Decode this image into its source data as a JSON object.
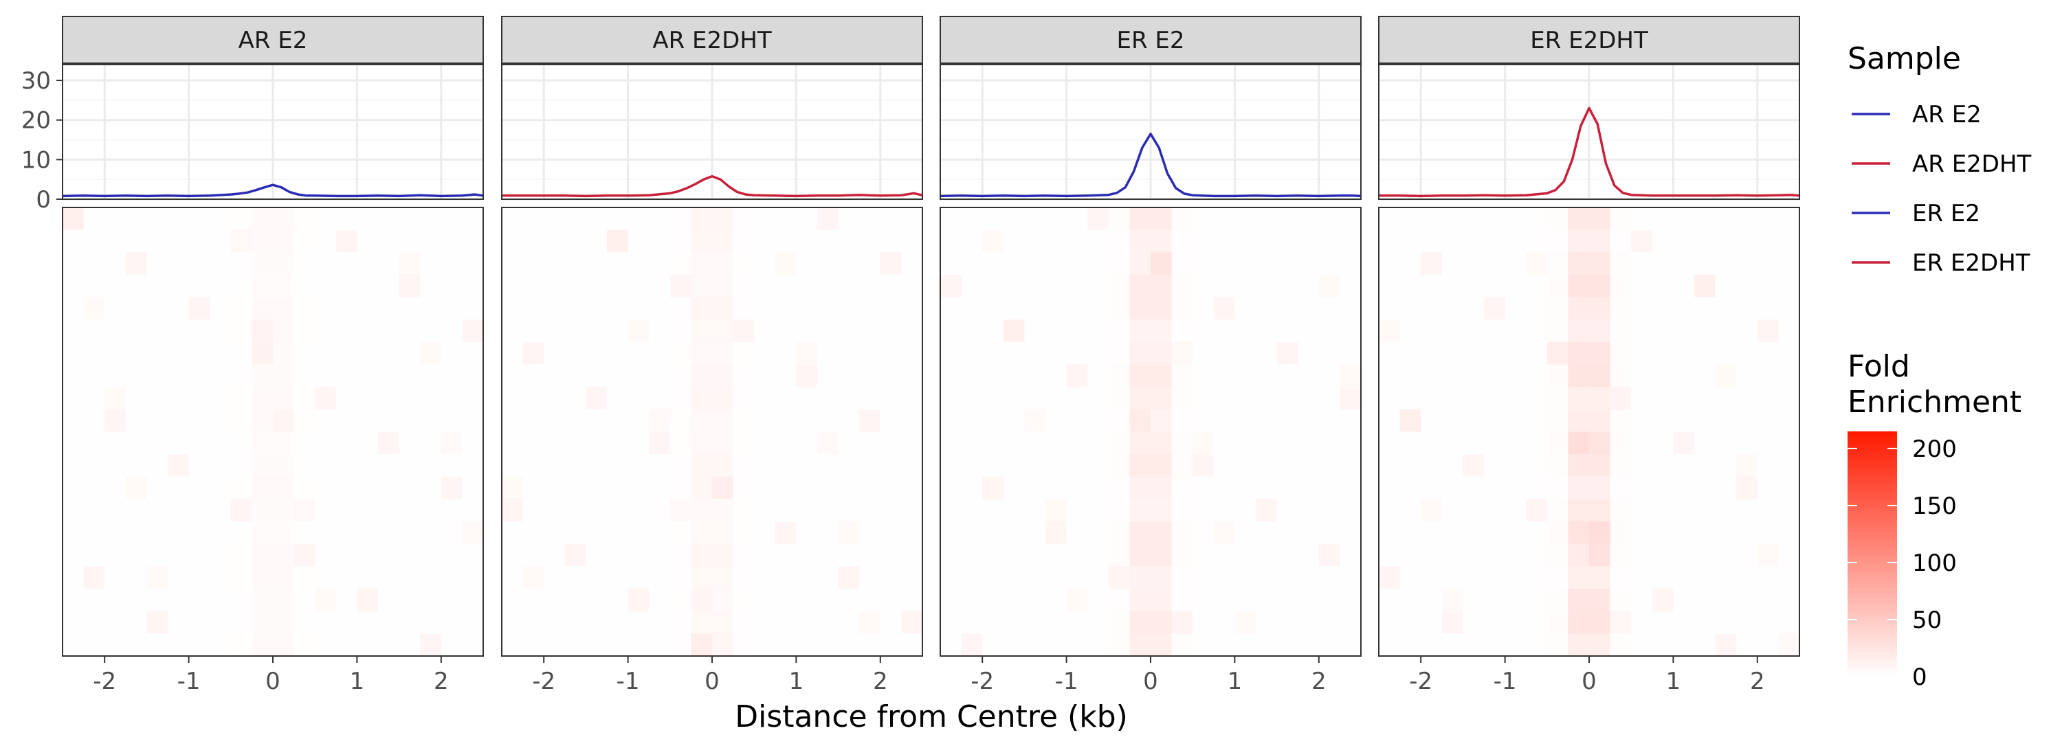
{
  "chart_data": {
    "type": "line",
    "panels": [
      {
        "title": "AR E2",
        "color": "#2b2bb5"
      },
      {
        "title": "AR E2DHT",
        "color": "#c8203a"
      },
      {
        "title": "ER E2",
        "color": "#2b2bb5"
      },
      {
        "title": "ER E2DHT",
        "color": "#c8203a"
      }
    ],
    "profile_x": [
      -2.5,
      -2.25,
      -2.0,
      -1.75,
      -1.5,
      -1.25,
      -1.0,
      -0.75,
      -0.5,
      -0.4,
      -0.3,
      -0.2,
      -0.1,
      0.0,
      0.1,
      0.2,
      0.3,
      0.4,
      0.5,
      0.75,
      1.0,
      1.25,
      1.5,
      1.75,
      2.0,
      2.25,
      2.4,
      2.5
    ],
    "series": [
      {
        "name": "AR E2",
        "values": [
          0.8,
          0.9,
          0.8,
          0.9,
          0.8,
          0.9,
          0.8,
          0.9,
          1.2,
          1.4,
          1.7,
          2.3,
          3.0,
          3.6,
          3.0,
          1.8,
          1.2,
          0.9,
          0.9,
          0.8,
          0.8,
          0.9,
          0.8,
          1.0,
          0.8,
          0.9,
          1.2,
          0.9
        ]
      },
      {
        "name": "AR E2DHT",
        "values": [
          0.9,
          0.9,
          0.9,
          0.9,
          0.8,
          0.9,
          0.9,
          1.0,
          1.5,
          2.0,
          2.8,
          3.8,
          5.0,
          5.8,
          5.0,
          3.2,
          1.8,
          1.2,
          1.0,
          0.9,
          0.8,
          0.9,
          0.9,
          1.1,
          0.9,
          1.0,
          1.5,
          1.0
        ]
      },
      {
        "name": "ER E2",
        "values": [
          0.8,
          0.9,
          0.8,
          0.9,
          0.8,
          0.9,
          0.8,
          0.9,
          1.1,
          1.6,
          3.0,
          7.0,
          13.0,
          16.5,
          13.0,
          6.5,
          2.8,
          1.4,
          1.0,
          0.8,
          0.8,
          0.9,
          0.8,
          0.9,
          0.8,
          0.9,
          0.9,
          0.8
        ]
      },
      {
        "name": "ER E2DHT",
        "values": [
          0.9,
          0.9,
          0.8,
          0.9,
          0.9,
          1.0,
          0.9,
          1.0,
          1.5,
          2.3,
          4.5,
          10.0,
          18.5,
          23.0,
          19.0,
          9.0,
          3.5,
          1.6,
          1.1,
          0.9,
          0.9,
          0.9,
          0.9,
          1.0,
          0.9,
          1.0,
          1.1,
          0.9
        ]
      }
    ],
    "profile_ylim": [
      0,
      34
    ],
    "profile_yticks": [
      0,
      10,
      20,
      30
    ],
    "xlim": [
      -2.5,
      2.5
    ],
    "xticks": [
      -2,
      -1,
      0,
      1,
      2
    ],
    "xlabel": "Distance from Centre (kb)",
    "ylabel": "",
    "legend": {
      "title": "Sample",
      "entries": [
        {
          "label": "AR E2",
          "color": "#2b2bb5"
        },
        {
          "label": "AR E2DHT",
          "color": "#c8203a"
        },
        {
          "label": "ER E2",
          "color": "#2b2bb5"
        },
        {
          "label": "ER E2DHT",
          "color": "#c8203a"
        }
      ],
      "placement": "right"
    },
    "heatmap": {
      "n_rows": 20,
      "n_cols": 20,
      "peak_fold": [
        6,
        10,
        25,
        35
      ],
      "colorbar": {
        "title_lines": [
          "Fold",
          "Enrichment"
        ],
        "min": 0,
        "max": 215,
        "ticks": [
          0,
          50,
          100,
          150,
          200
        ],
        "low_color": "#ffffff",
        "high_color": "#ff1a00"
      }
    }
  }
}
